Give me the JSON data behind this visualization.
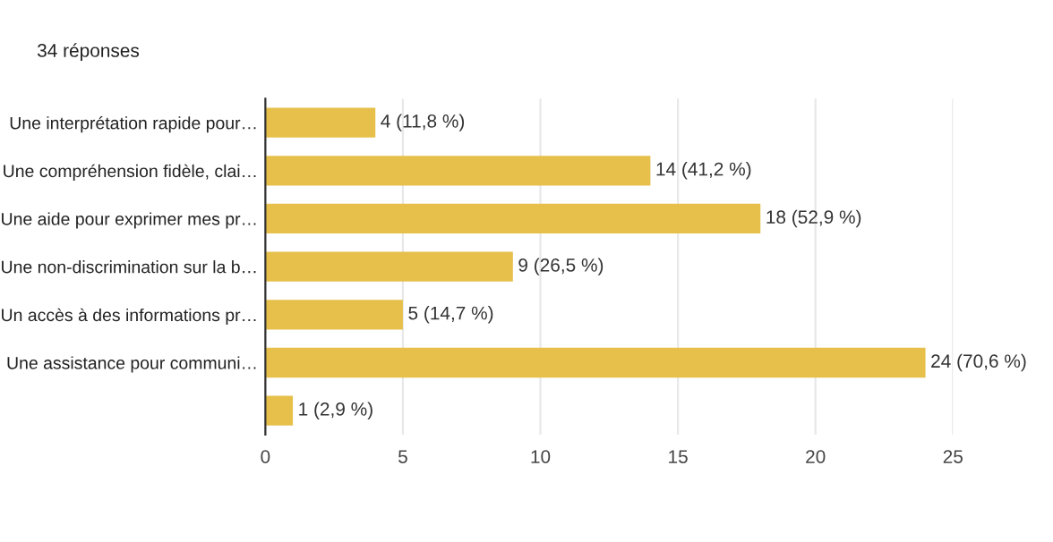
{
  "chart_data": {
    "type": "bar",
    "orientation": "horizontal",
    "title": "34 réponses",
    "categories": [
      "Une interprétation rapide pour…",
      "Une compréhension fidèle, clai…",
      "Une aide pour exprimer mes pr…",
      "Une non-discrimination sur la b…",
      "Un accès à des informations pr…",
      "Une assistance pour communi…",
      null
    ],
    "values": [
      4,
      14,
      18,
      9,
      5,
      24,
      1
    ],
    "value_labels": [
      "4 (11,8 %)",
      "14 (41,2 %)",
      "18 (52,9 %)",
      "9 (26,5 %)",
      "5 (14,7 %)",
      "24 (70,6 %)",
      "1 (2,9 %)"
    ],
    "color": "#e6c04a",
    "xlim": [
      0,
      25
    ],
    "xticks": [
      0,
      5,
      10,
      15,
      20,
      25
    ],
    "grid": "x",
    "legend": false
  }
}
